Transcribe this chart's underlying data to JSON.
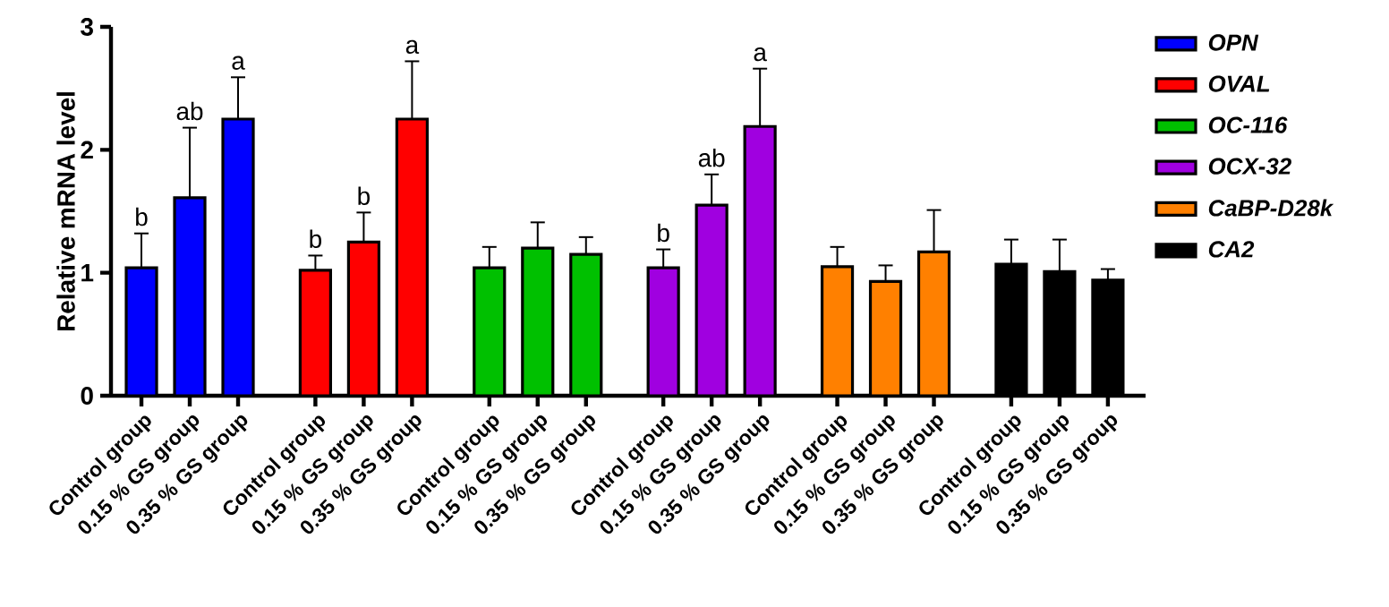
{
  "chart_data": {
    "type": "bar",
    "ylabel": "Relative mRNA level",
    "categories": [
      "Control group",
      "0.15 % GS group",
      "0.35 % GS group",
      "Control group",
      "0.15 % GS group",
      "0.35 % GS group",
      "Control group",
      "0.15 % GS group",
      "0.35 % GS group",
      "Control group",
      "0.15 % GS group",
      "0.35 % GS group",
      "Control group",
      "0.15 % GS group",
      "0.35 % GS group",
      "Control group",
      "0.15 % GS group",
      "0.35 % GS group"
    ],
    "ylim": [
      0,
      3
    ],
    "yticks": [
      0,
      1,
      2,
      3
    ],
    "grid": false,
    "legend": "right",
    "series": [
      {
        "name": "OPN",
        "color": "#0000ff",
        "values": [
          1.04,
          1.61,
          2.25,
          null,
          null,
          null,
          null,
          null,
          null,
          null,
          null,
          null,
          null,
          null,
          null,
          null,
          null,
          null
        ],
        "errors": [
          0.28,
          0.57,
          0.34,
          null,
          null,
          null,
          null,
          null,
          null,
          null,
          null,
          null,
          null,
          null,
          null,
          null,
          null,
          null
        ],
        "value_labels": [
          "b",
          "ab",
          "a",
          null,
          null,
          null,
          null,
          null,
          null,
          null,
          null,
          null,
          null,
          null,
          null,
          null,
          null,
          null
        ]
      },
      {
        "name": "OVAL",
        "color": "#ff0000",
        "values": [
          null,
          null,
          null,
          1.02,
          1.25,
          2.25,
          null,
          null,
          null,
          null,
          null,
          null,
          null,
          null,
          null,
          null,
          null,
          null
        ],
        "errors": [
          null,
          null,
          null,
          0.12,
          0.24,
          0.47,
          null,
          null,
          null,
          null,
          null,
          null,
          null,
          null,
          null,
          null,
          null,
          null
        ],
        "value_labels": [
          null,
          null,
          null,
          "b",
          "b",
          "a",
          null,
          null,
          null,
          null,
          null,
          null,
          null,
          null,
          null,
          null,
          null,
          null
        ]
      },
      {
        "name": "OC-116",
        "color": "#00c000",
        "values": [
          null,
          null,
          null,
          null,
          null,
          null,
          1.04,
          1.2,
          1.15,
          null,
          null,
          null,
          null,
          null,
          null,
          null,
          null,
          null
        ],
        "errors": [
          null,
          null,
          null,
          null,
          null,
          null,
          0.17,
          0.21,
          0.14,
          null,
          null,
          null,
          null,
          null,
          null,
          null,
          null,
          null
        ]
      },
      {
        "name": "OCX-32",
        "color": "#a000e0",
        "values": [
          null,
          null,
          null,
          null,
          null,
          null,
          null,
          null,
          null,
          1.04,
          1.55,
          2.19,
          null,
          null,
          null,
          null,
          null,
          null
        ],
        "errors": [
          null,
          null,
          null,
          null,
          null,
          null,
          null,
          null,
          null,
          0.15,
          0.25,
          0.47,
          null,
          null,
          null,
          null,
          null,
          null
        ],
        "value_labels": [
          null,
          null,
          null,
          null,
          null,
          null,
          null,
          null,
          null,
          "b",
          "ab",
          "a",
          null,
          null,
          null,
          null,
          null,
          null
        ]
      },
      {
        "name": "CaBP-D28k",
        "color": "#ff8000",
        "values": [
          null,
          null,
          null,
          null,
          null,
          null,
          null,
          null,
          null,
          null,
          null,
          null,
          1.05,
          0.93,
          1.17,
          null,
          null,
          null
        ],
        "errors": [
          null,
          null,
          null,
          null,
          null,
          null,
          null,
          null,
          null,
          null,
          null,
          null,
          0.16,
          0.13,
          0.34,
          null,
          null,
          null
        ]
      },
      {
        "name": "CA2",
        "color": "#000000",
        "values": [
          null,
          null,
          null,
          null,
          null,
          null,
          null,
          null,
          null,
          null,
          null,
          null,
          null,
          null,
          null,
          1.07,
          1.01,
          0.94
        ],
        "errors": [
          null,
          null,
          null,
          null,
          null,
          null,
          null,
          null,
          null,
          null,
          null,
          null,
          null,
          null,
          null,
          0.2,
          0.26,
          0.09
        ]
      }
    ]
  }
}
